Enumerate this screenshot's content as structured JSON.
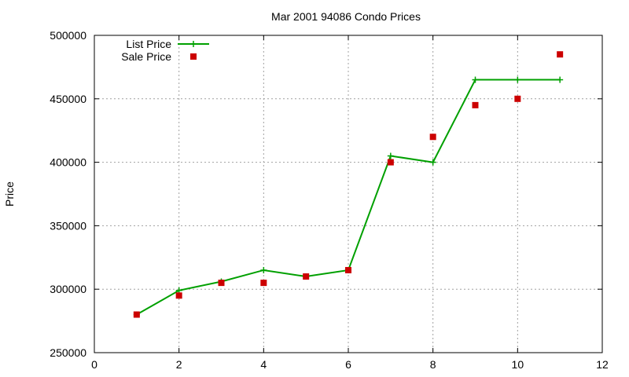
{
  "chart_data": {
    "type": "line",
    "title": "Mar 2001 94086 Condo Prices",
    "xlabel": "",
    "ylabel": "Price",
    "xlim": [
      0,
      12
    ],
    "ylim": [
      250000,
      500000
    ],
    "xticks": [
      0,
      2,
      4,
      6,
      8,
      10,
      12
    ],
    "yticks": [
      250000,
      300000,
      350000,
      400000,
      450000,
      500000
    ],
    "grid": true,
    "legend_position": "top-left",
    "series": [
      {
        "name": "List Price",
        "style": "line+cross",
        "color": "#00a000",
        "x": [
          1,
          2,
          3,
          4,
          5,
          6,
          7,
          8,
          9,
          10,
          11
        ],
        "values": [
          280000,
          299000,
          306000,
          315000,
          310000,
          315000,
          405000,
          400000,
          465000,
          465000,
          465000
        ]
      },
      {
        "name": "Sale Price",
        "style": "square-points",
        "color": "#cc0000",
        "x": [
          1,
          2,
          3,
          4,
          5,
          6,
          7,
          8,
          9,
          10,
          11
        ],
        "values": [
          280000,
          295000,
          305000,
          305000,
          310000,
          315000,
          400000,
          420000,
          445000,
          450000,
          485000
        ]
      }
    ]
  }
}
